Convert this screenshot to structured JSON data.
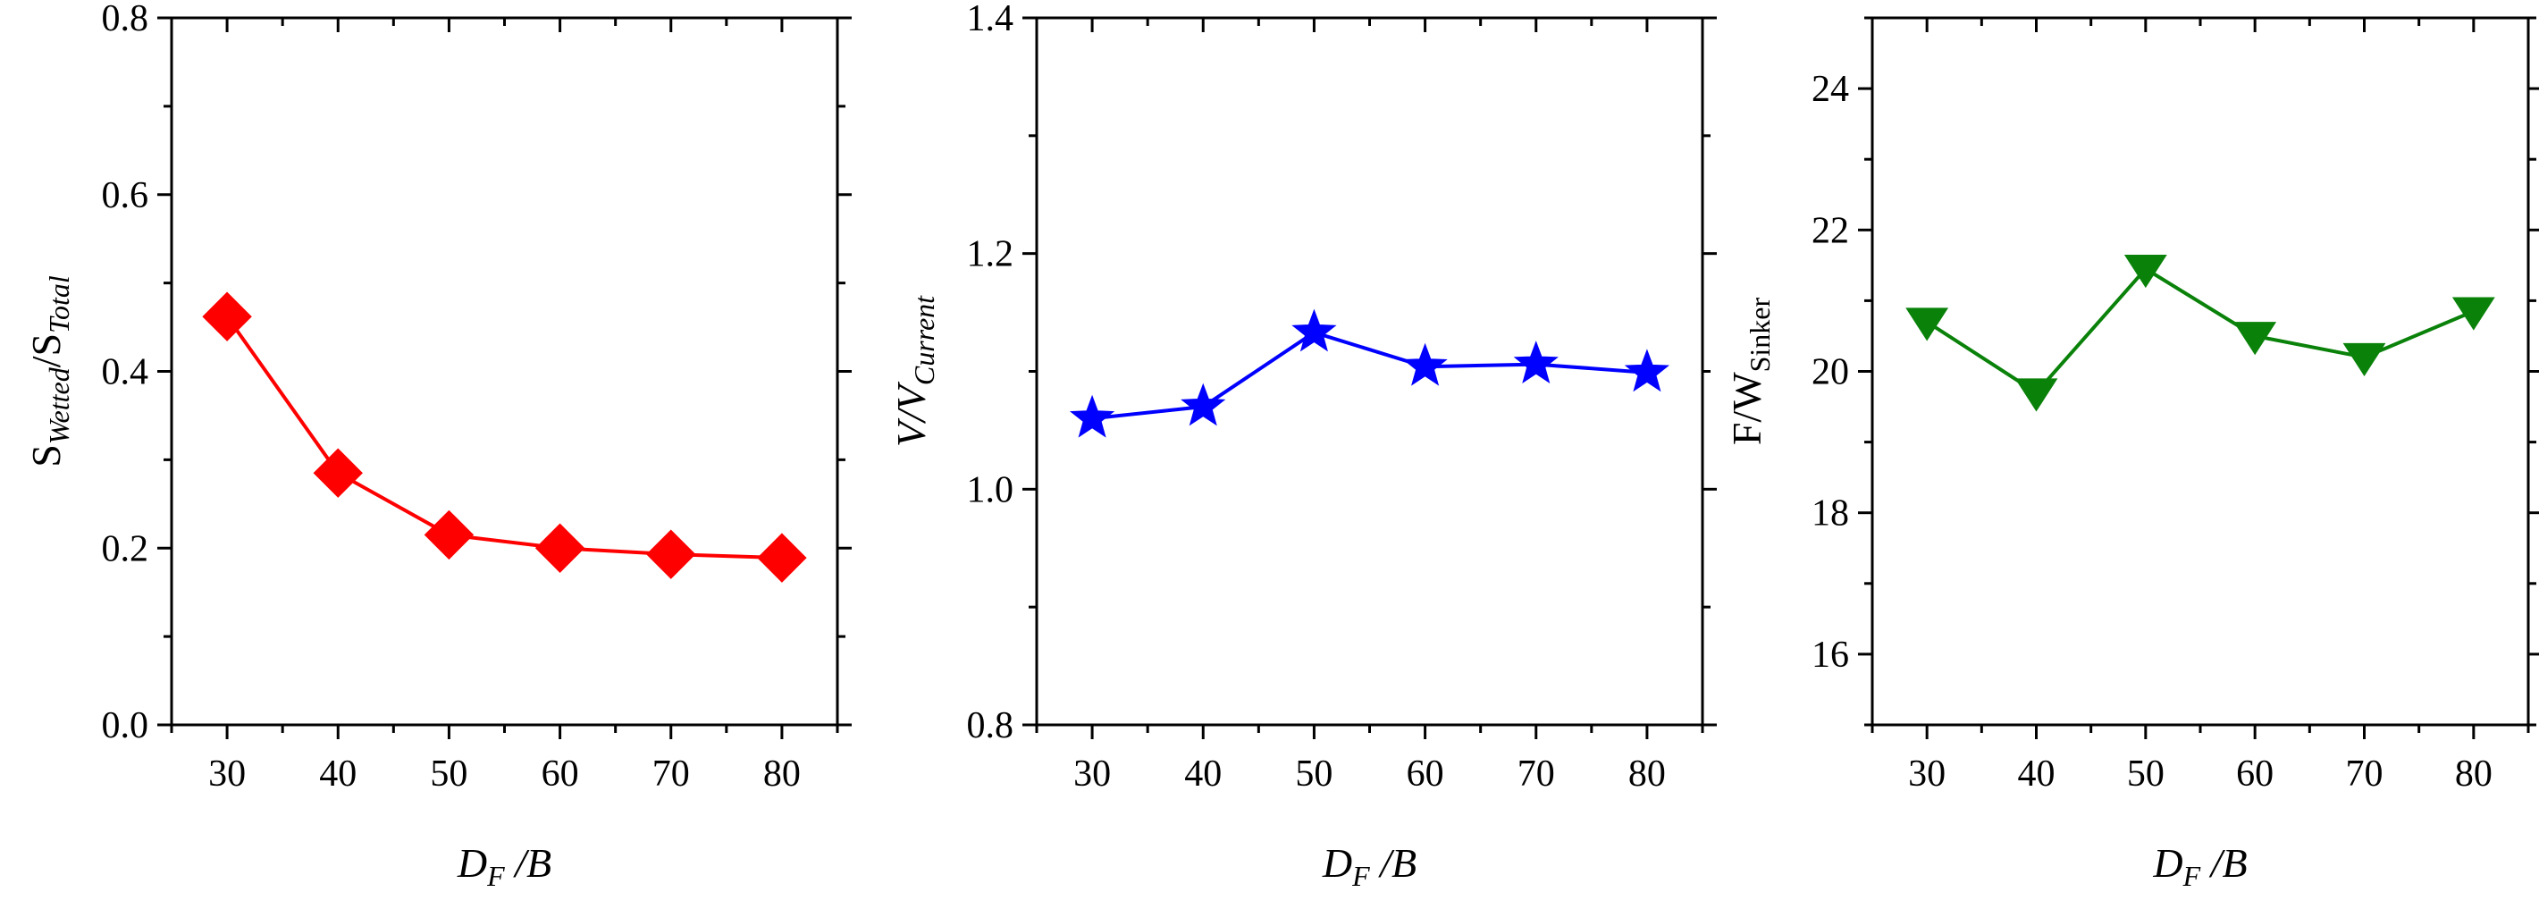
{
  "chart_data": [
    {
      "type": "line",
      "panel": "left",
      "x": [
        30,
        40,
        50,
        60,
        70,
        80
      ],
      "values": [
        0.462,
        0.285,
        0.215,
        0.2,
        0.193,
        0.189
      ],
      "xlim": [
        25,
        85
      ],
      "ylim": [
        0.0,
        0.8
      ],
      "xticks": [
        "30",
        "40",
        "50",
        "60",
        "70",
        "80"
      ],
      "yticks": [
        "0.0",
        "0.2",
        "0.4",
        "0.6",
        "0.8"
      ],
      "ylabel_parts": [
        "S",
        "Wetted",
        "/S",
        "Total"
      ],
      "xlabel_parts": [
        "D",
        "F",
        " /B"
      ],
      "color": "#ff0000",
      "marker": "diamond"
    },
    {
      "type": "line",
      "panel": "middle",
      "x": [
        30,
        40,
        50,
        60,
        70,
        80
      ],
      "values": [
        1.06,
        1.07,
        1.133,
        1.104,
        1.106,
        1.099
      ],
      "xlim": [
        25,
        85
      ],
      "ylim": [
        0.8,
        1.4
      ],
      "xticks": [
        "30",
        "40",
        "50",
        "60",
        "70",
        "80"
      ],
      "yticks": [
        "0.8",
        "1.0",
        "1.2",
        "1.4"
      ],
      "ylabel_parts": [
        "V/V",
        "Current"
      ],
      "xlabel_parts": [
        "D",
        "F",
        " /B"
      ],
      "color": "#0000ff",
      "marker": "star"
    },
    {
      "type": "line",
      "panel": "right",
      "x": [
        30,
        40,
        50,
        60,
        70,
        80
      ],
      "values": [
        20.7,
        19.7,
        21.45,
        20.5,
        20.2,
        20.85
      ],
      "xlim": [
        25,
        85
      ],
      "ylim": [
        15,
        25
      ],
      "xticks": [
        "30",
        "40",
        "50",
        "60",
        "70",
        "80"
      ],
      "yticks": [
        "16",
        "18",
        "20",
        "22",
        "24"
      ],
      "ylabel_parts": [
        "F/W",
        "Sinker"
      ],
      "xlabel_parts": [
        "D",
        "F",
        " /B"
      ],
      "color": "#0a820a",
      "marker": "triangle-down"
    }
  ]
}
